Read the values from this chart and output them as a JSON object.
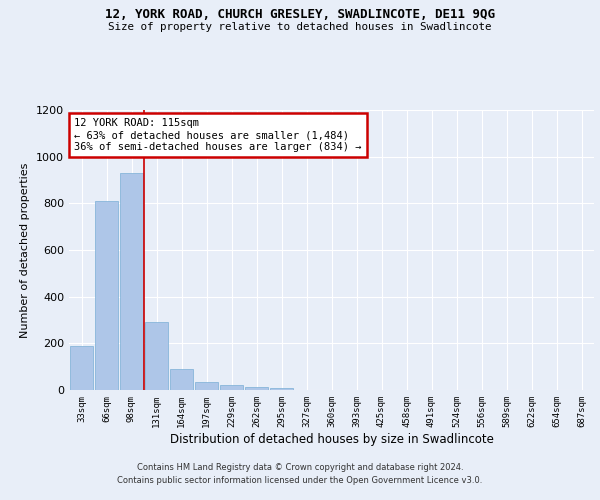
{
  "title1": "12, YORK ROAD, CHURCH GRESLEY, SWADLINCOTE, DE11 9QG",
  "title2": "Size of property relative to detached houses in Swadlincote",
  "xlabel": "Distribution of detached houses by size in Swadlincote",
  "ylabel": "Number of detached properties",
  "bin_labels": [
    "33sqm",
    "66sqm",
    "98sqm",
    "131sqm",
    "164sqm",
    "197sqm",
    "229sqm",
    "262sqm",
    "295sqm",
    "327sqm",
    "360sqm",
    "393sqm",
    "425sqm",
    "458sqm",
    "491sqm",
    "524sqm",
    "556sqm",
    "589sqm",
    "622sqm",
    "654sqm",
    "687sqm"
  ],
  "bar_heights": [
    190,
    810,
    930,
    290,
    90,
    35,
    20,
    15,
    8,
    0,
    0,
    0,
    0,
    0,
    0,
    0,
    0,
    0,
    0,
    0,
    0
  ],
  "bar_color": "#aec6e8",
  "bar_edge_color": "#7aaed6",
  "vline_x": 2.515,
  "vline_color": "#cc0000",
  "annotation_text": "12 YORK ROAD: 115sqm\n← 63% of detached houses are smaller (1,484)\n36% of semi-detached houses are larger (834) →",
  "annotation_box_color": "#ffffff",
  "annotation_box_edge": "#cc0000",
  "ylim": [
    0,
    1200
  ],
  "yticks": [
    0,
    200,
    400,
    600,
    800,
    1000,
    1200
  ],
  "footer1": "Contains HM Land Registry data © Crown copyright and database right 2024.",
  "footer2": "Contains public sector information licensed under the Open Government Licence v3.0.",
  "background_color": "#e8eef8",
  "plot_background": "#e8eef8"
}
